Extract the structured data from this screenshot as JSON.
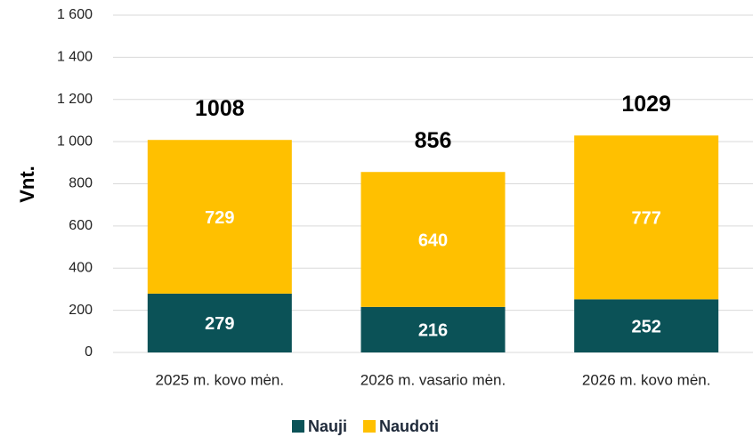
{
  "chart_data": {
    "type": "stacked_bar",
    "y_axis_label": "Vnt.",
    "categories": [
      "2025 m. kovo mėn.",
      "2026 m. vasario mėn.",
      "2026 m. kovo mėn."
    ],
    "series": [
      {
        "name": "Nauji",
        "color": "#0b5257",
        "values": [
          279,
          216,
          252
        ]
      },
      {
        "name": "Naudoti",
        "color": "#ffc000",
        "values": [
          729,
          640,
          777
        ]
      }
    ],
    "totals": [
      1008,
      856,
      1029
    ],
    "ylim": [
      0,
      1600
    ],
    "yticks": [
      0,
      200,
      400,
      600,
      800,
      {
        "value": 1000,
        "label": "1 000"
      },
      {
        "value": 1200,
        "label": "1 200"
      },
      {
        "value": 1400,
        "label": "1 400"
      },
      {
        "value": 1600,
        "label": "1 600"
      }
    ],
    "grid": true,
    "legend": "bottom"
  }
}
